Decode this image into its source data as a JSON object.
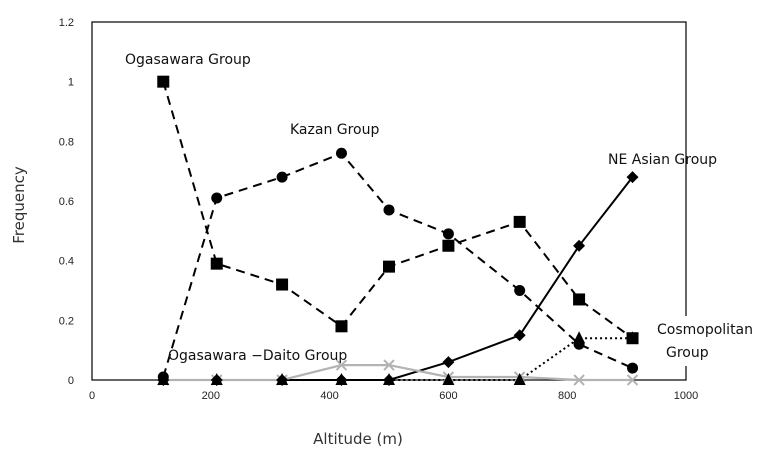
{
  "chart_data": {
    "type": "line",
    "xlabel": "Altitude (m)",
    "ylabel": "Frequency",
    "xlim": [
      0,
      1000
    ],
    "ylim": [
      0,
      1.2
    ],
    "x_ticks": [
      "0",
      "200",
      "400",
      "600",
      "800",
      "1000"
    ],
    "y_ticks": [
      "0",
      "0.2",
      "0.4",
      "0.6",
      "0.8",
      "1",
      "1.2"
    ],
    "grid": false,
    "series": [
      {
        "name": "Ogasawara Group",
        "marker": "square",
        "line": "dashed",
        "color": "#000000",
        "x": [
          120,
          210,
          320,
          420,
          500,
          600,
          720,
          820,
          910
        ],
        "y": [
          1.0,
          0.39,
          0.32,
          0.18,
          0.38,
          0.45,
          0.53,
          0.27,
          0.14
        ]
      },
      {
        "name": "Kazan Group",
        "marker": "circle",
        "line": "dashed",
        "color": "#000000",
        "x": [
          120,
          210,
          320,
          420,
          500,
          600,
          720,
          820,
          910
        ],
        "y": [
          0.01,
          0.61,
          0.68,
          0.76,
          0.57,
          0.49,
          0.3,
          0.12,
          0.04
        ]
      },
      {
        "name": "NE Asian Group",
        "marker": "diamond",
        "line": "solid",
        "color": "#000000",
        "x": [
          120,
          210,
          320,
          420,
          500,
          600,
          720,
          820,
          910
        ],
        "y": [
          0,
          0,
          0,
          0,
          0,
          0.06,
          0.15,
          0.45,
          0.68
        ]
      },
      {
        "name": "Cosmopolitan Group",
        "marker": "triangle",
        "line": "dotted",
        "color": "#000000",
        "x": [
          120,
          210,
          320,
          420,
          500,
          600,
          720,
          820,
          910
        ],
        "y": [
          0,
          0,
          0,
          0,
          0,
          0,
          0,
          0.14,
          0.14
        ]
      },
      {
        "name": "Ogasawara −Daito Group",
        "marker": "x",
        "line": "solid",
        "color": "#b3b3b3",
        "x": [
          120,
          210,
          320,
          420,
          500,
          600,
          720,
          820,
          910
        ],
        "y": [
          0,
          0,
          0,
          0.05,
          0.05,
          0.01,
          0.01,
          0,
          0
        ]
      }
    ],
    "labels": {
      "ogasawara": "Ogasawara Group",
      "kazan": "Kazan Group",
      "neasian": "NE Asian Group",
      "cosmo_line1": "Cosmopolitan",
      "cosmo_line2": "Group",
      "daito": "Ogasawara −Daito Group"
    }
  }
}
